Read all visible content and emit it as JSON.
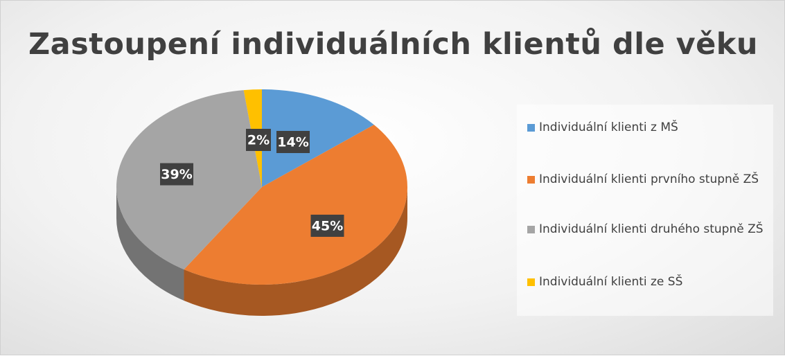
{
  "chart_data": {
    "type": "pie",
    "title": "Zastoupení individuálních klientů dle věku",
    "categories": [
      "Individuální klienti z MŠ",
      "Individuální klienti prvního stupně ZŠ",
      "Individuální klienti druhého stupně ZŠ",
      "Individuální klienti ze SŠ"
    ],
    "values": [
      14,
      45,
      39,
      2
    ],
    "value_labels": [
      "14%",
      "45%",
      "39%",
      "2%"
    ],
    "colors": [
      "#5b9bd5",
      "#ed7d31",
      "#a5a5a5",
      "#ffc000"
    ],
    "legend": "right"
  }
}
